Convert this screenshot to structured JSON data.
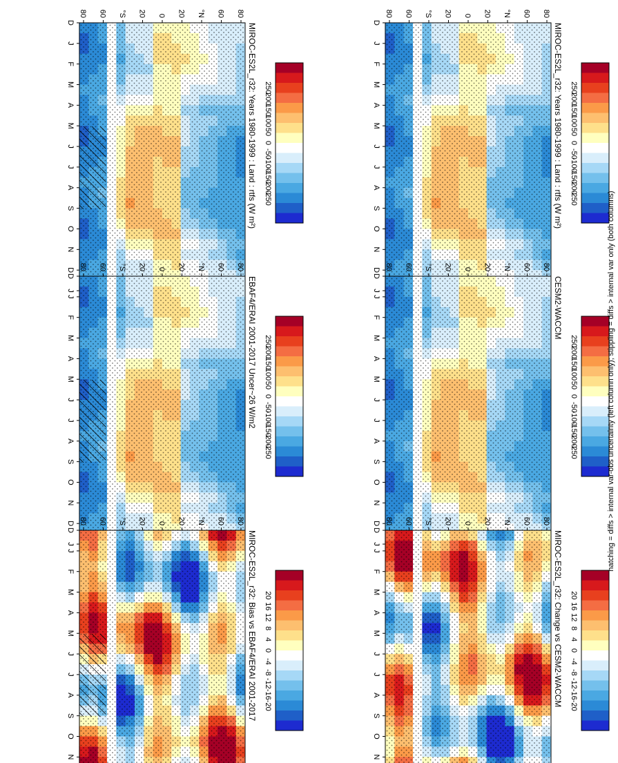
{
  "figure": {
    "footnote": "hatching = diffs > internal var-obs uncertainty (left column only); stippling = diffs > internal var only (both columns)"
  },
  "colors": {
    "abs_scale": [
      "#a50026",
      "#d7191c",
      "#e8401e",
      "#f46d43",
      "#fb9a48",
      "#fdbf6f",
      "#fee08b",
      "#ffffbf",
      "#ffffff",
      "#d9eefb",
      "#a6d8f6",
      "#74c0ec",
      "#4aa8e2",
      "#2b8ad6",
      "#1f5fc8",
      "#1d2bd0"
    ],
    "diff_scale": [
      "#a50026",
      "#d7191c",
      "#e8401e",
      "#f46d43",
      "#fb9a48",
      "#fdbf6f",
      "#fee08b",
      "#ffffbf",
      "#ffffff",
      "#d9eefb",
      "#a6d8f6",
      "#74c0ec",
      "#4aa8e2",
      "#2b8ad6",
      "#1f5fc8",
      "#1d2bd0"
    ]
  },
  "chart_data": [
    {
      "type": "heatmap",
      "id": "p1",
      "title": "MIROC-ES2L_r32: Years 1980-1999 : Land : rtfs (W m²)",
      "x_categories": [
        "D",
        "J",
        "F",
        "M",
        "A",
        "M",
        "J",
        "J",
        "A",
        "S",
        "O",
        "N",
        "D",
        "J"
      ],
      "y_tick_labels": [
        "80",
        "60",
        "°N",
        "20",
        "0",
        "20",
        "°S",
        "60",
        "80"
      ],
      "colorbar_labels": [
        "250",
        "200",
        "150",
        "100",
        "50",
        "0",
        "-50",
        "-100",
        "-150",
        "-200",
        "-250"
      ],
      "hatching": true,
      "stippling": true
    },
    {
      "type": "heatmap",
      "id": "p2",
      "title": "EBAF4/ERAI 2001-2017 Uncer~26 W/m2",
      "x_categories": [
        "D",
        "J",
        "F",
        "M",
        "A",
        "M",
        "J",
        "J",
        "A",
        "S",
        "O",
        "N",
        "D",
        "J"
      ],
      "y_tick_labels": [
        "80",
        "60",
        "°N",
        "20",
        "0",
        "20",
        "°S",
        "60",
        "80"
      ],
      "colorbar_labels": [
        "250",
        "200",
        "150",
        "100",
        "50",
        "0",
        "-50",
        "-100",
        "-150",
        "-200",
        "-250"
      ],
      "hatching": true,
      "stippling": true
    },
    {
      "type": "heatmap",
      "id": "p3",
      "title": "MIROC-ES2L_r32: Bias vs EBAF4/ERAI 2001-2017",
      "x_categories": [
        "D",
        "J",
        "F",
        "M",
        "A",
        "M",
        "J",
        "J",
        "A",
        "S",
        "O",
        "N",
        "D",
        "J"
      ],
      "y_tick_labels": [
        "80",
        "60",
        "°N",
        "20",
        "0",
        "20",
        "°S",
        "60",
        "80"
      ],
      "colorbar_labels": [
        "20",
        "16",
        "12",
        "8",
        "4",
        "0",
        "-4",
        "-8",
        "-12",
        "-16",
        "-20"
      ],
      "hatching": true,
      "stippling": true
    },
    {
      "type": "heatmap",
      "id": "p4",
      "title": "MIROC-ES2L_r32: Years 1980-1999 : Land : rtfs (W m²)",
      "x_categories": [
        "D",
        "J",
        "F",
        "M",
        "A",
        "M",
        "J",
        "J",
        "A",
        "S",
        "O",
        "N",
        "D",
        "J"
      ],
      "y_tick_labels": [
        "80",
        "60",
        "°N",
        "20",
        "0",
        "20",
        "°S",
        "60",
        "80"
      ],
      "colorbar_labels": [
        "250",
        "200",
        "150",
        "100",
        "50",
        "0",
        "-50",
        "-100",
        "-150",
        "-200",
        "-250"
      ],
      "hatching": false,
      "stippling": true
    },
    {
      "type": "heatmap",
      "id": "p5",
      "title": "CESM2-WACCM",
      "x_categories": [
        "D",
        "J",
        "F",
        "M",
        "A",
        "M",
        "J",
        "J",
        "A",
        "S",
        "O",
        "N",
        "D",
        "J"
      ],
      "y_tick_labels": [
        "80",
        "60",
        "°N",
        "20",
        "0",
        "20",
        "°S",
        "60",
        "80"
      ],
      "colorbar_labels": [
        "250",
        "200",
        "150",
        "100",
        "50",
        "0",
        "-50",
        "-100",
        "-150",
        "-200",
        "-250"
      ],
      "hatching": false,
      "stippling": true
    },
    {
      "type": "heatmap",
      "id": "p6",
      "title": "MIROC-ES2L_r32: Change vs CESM2-WACCM",
      "x_categories": [
        "D",
        "J",
        "F",
        "M",
        "A",
        "M",
        "J",
        "J",
        "A",
        "S",
        "O",
        "N",
        "D",
        "J"
      ],
      "y_tick_labels": [
        "80",
        "60",
        "°N",
        "20",
        "0",
        "20",
        "°S",
        "60",
        "80"
      ],
      "colorbar_labels": [
        "20",
        "16",
        "12",
        "8",
        "4",
        "0",
        "-4",
        "-8",
        "-12",
        "-16",
        "-20"
      ],
      "hatching": false,
      "stippling": true
    }
  ]
}
